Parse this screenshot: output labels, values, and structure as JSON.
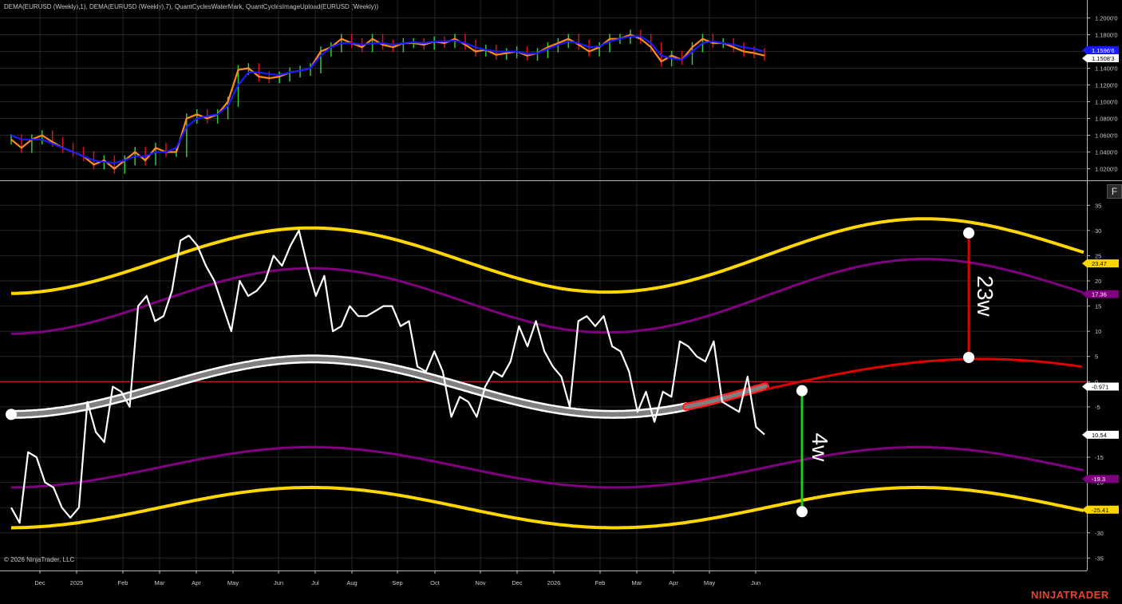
{
  "header": {
    "indicators_text": "DEMA(EURUSD (Weekly),1), DEMA(EURUSD (Weekly),7), QuantCyclesWaterMark, QuantCyclesImageUpload(EURUSD (Weekly))"
  },
  "footer": {
    "copyright": "© 2026 NinjaTrader, LLC",
    "brand": "NINJATRADER"
  },
  "toolbar": {
    "f_label": "F"
  },
  "chart_data": [
    {
      "type": "line",
      "panel": "price",
      "ylim": [
        1.01,
        1.21
      ],
      "y_ticks": [
        "1.0200'0",
        "1.0400'0",
        "1.0600'0",
        "1.0800'0",
        "1.1000'0",
        "1.1200'0",
        "1.1400'0",
        "1.1600'0",
        "1.1800'0",
        "1.2000'0"
      ],
      "price_badges": [
        {
          "label": "1.1596'6",
          "color": "#1a1aff"
        },
        {
          "label": "1.1508'3",
          "color": "#ffffff"
        }
      ],
      "series": [
        {
          "name": "DEMA(EURUSD (Weekly),1)",
          "color": "#ff8c1a",
          "values": [
            1.055,
            1.045,
            1.055,
            1.06,
            1.052,
            1.045,
            1.04,
            1.035,
            1.025,
            1.03,
            1.02,
            1.03,
            1.04,
            1.03,
            1.045,
            1.04,
            1.04,
            1.08,
            1.085,
            1.08,
            1.085,
            1.1,
            1.138,
            1.14,
            1.13,
            1.128,
            1.13,
            1.135,
            1.137,
            1.14,
            1.16,
            1.165,
            1.175,
            1.17,
            1.165,
            1.175,
            1.168,
            1.165,
            1.17,
            1.17,
            1.168,
            1.172,
            1.17,
            1.175,
            1.168,
            1.16,
            1.162,
            1.156,
            1.158,
            1.16,
            1.155,
            1.158,
            1.165,
            1.17,
            1.175,
            1.168,
            1.16,
            1.165,
            1.175,
            1.175,
            1.18,
            1.175,
            1.165,
            1.148,
            1.155,
            1.15,
            1.165,
            1.175,
            1.17,
            1.17,
            1.165,
            1.16,
            1.158,
            1.155
          ]
        },
        {
          "name": "DEMA(EURUSD (Weekly),7)",
          "color": "#1a1aff",
          "values": [
            1.06,
            1.055,
            1.055,
            1.055,
            1.05,
            1.045,
            1.04,
            1.035,
            1.03,
            1.028,
            1.027,
            1.03,
            1.035,
            1.035,
            1.04,
            1.04,
            1.045,
            1.07,
            1.08,
            1.083,
            1.085,
            1.095,
            1.12,
            1.135,
            1.135,
            1.133,
            1.132,
            1.135,
            1.137,
            1.14,
            1.155,
            1.165,
            1.17,
            1.17,
            1.168,
            1.17,
            1.17,
            1.168,
            1.17,
            1.171,
            1.17,
            1.172,
            1.172,
            1.173,
            1.17,
            1.165,
            1.162,
            1.16,
            1.16,
            1.16,
            1.157,
            1.158,
            1.163,
            1.168,
            1.172,
            1.17,
            1.165,
            1.166,
            1.172,
            1.175,
            1.178,
            1.178,
            1.17,
            1.155,
            1.152,
            1.15,
            1.16,
            1.17,
            1.172,
            1.17,
            1.168,
            1.165,
            1.163,
            1.16
          ]
        }
      ]
    },
    {
      "type": "line",
      "panel": "cycles",
      "ylim": [
        -37,
        39
      ],
      "y_ticks": [
        "35",
        "30",
        "25",
        "20",
        "15",
        "10",
        "5",
        "0",
        "-5",
        "-15",
        "-20",
        "-25",
        "-30",
        "-35"
      ],
      "x_ticks": [
        "Dec",
        "2025",
        "Feb",
        "Mar",
        "Apr",
        "May",
        "Jun",
        "Jul",
        "Aug",
        "Sep",
        "Oct",
        "Nov",
        "Dec",
        "2026",
        "Feb",
        "Mar",
        "Apr",
        "May",
        "Jun"
      ],
      "value_badges": [
        {
          "label": "23.47",
          "color": "#ffd700"
        },
        {
          "label": "17.36",
          "color": "#800080"
        },
        {
          "label": "-0.971",
          "color": "#ffffff"
        },
        {
          "label": "10.54",
          "color": "#ffffff"
        },
        {
          "label": "-19.3",
          "color": "#800080"
        },
        {
          "label": "-25.41",
          "color": "#ffd700"
        }
      ],
      "annotations": [
        {
          "text": "23w",
          "color": "#e00000"
        },
        {
          "text": "4w",
          "color": "#00cc00"
        }
      ],
      "series": [
        {
          "color": "#ffffff",
          "values": [
            -25,
            -28,
            -14,
            -15,
            -20,
            -21,
            -25,
            -27,
            -25,
            -4,
            -10,
            -12,
            -1,
            -2,
            -5,
            15,
            17,
            12,
            13,
            18,
            28,
            29,
            27,
            23,
            20,
            15,
            10,
            20,
            17,
            18,
            20,
            25,
            23,
            27,
            30,
            23,
            17,
            21,
            10,
            11,
            15,
            13,
            13,
            14,
            15,
            15,
            11,
            12,
            3,
            2,
            6,
            2,
            -7,
            -3,
            -4,
            -7,
            -1,
            2,
            1,
            4,
            11,
            7,
            12,
            6,
            3,
            1,
            -5,
            12,
            13,
            11,
            13,
            7,
            6,
            2,
            -6,
            -2,
            -8,
            -2,
            -3,
            8,
            7,
            5,
            4,
            8,
            -4,
            -5,
            -6,
            1,
            -9,
            -10.5
          ]
        },
        {
          "color": "#808080",
          "values": []
        }
      ]
    }
  ]
}
